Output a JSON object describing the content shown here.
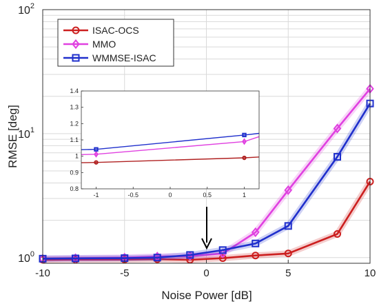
{
  "chart_data": [
    {
      "type": "line",
      "title": "",
      "xlabel": "Noise Power  [dB]",
      "ylabel": "RMSE [deg]",
      "xlim": [
        -10,
        10
      ],
      "ylim": [
        0.9,
        100
      ],
      "yscale": "log",
      "grid": true,
      "xticks": [
        -10,
        -5,
        0,
        5,
        10
      ],
      "yticks": [
        1,
        10,
        100
      ],
      "ytick_labels": [
        {
          "base": "10",
          "exp": "0"
        },
        {
          "base": "10",
          "exp": "1"
        },
        {
          "base": "10",
          "exp": "2"
        }
      ],
      "legend_position": "top-left",
      "series": [
        {
          "name": "ISAC-OCS",
          "color": "#cc1f1f",
          "marker": "circle",
          "x": [
            -10,
            -8,
            -5,
            -3,
            -1,
            1,
            3,
            5,
            8,
            10
          ],
          "y": [
            0.96,
            0.965,
            0.965,
            0.97,
            0.96,
            0.99,
            1.04,
            1.08,
            1.55,
            4.1
          ]
        },
        {
          "name": "MMO",
          "color": "#e040e0",
          "marker": "diamond",
          "x": [
            -10,
            -8,
            -5,
            -3,
            -1,
            1,
            3,
            5,
            8,
            10
          ],
          "y": [
            0.98,
            0.99,
            1.0,
            1.02,
            1.03,
            1.08,
            1.6,
            3.5,
            11,
            23
          ]
        },
        {
          "name": "WMMSE-ISAC",
          "color": "#1f2fcc",
          "marker": "square",
          "x": [
            -10,
            -8,
            -5,
            -3,
            -1,
            1,
            3,
            5,
            8,
            10
          ],
          "y": [
            0.98,
            0.985,
            0.99,
            1.0,
            1.05,
            1.15,
            1.3,
            1.8,
            6.5,
            17.5
          ]
        }
      ]
    },
    {
      "type": "line",
      "title": "inset",
      "xlim": [
        -1.2,
        1.2
      ],
      "ylim": [
        0.8,
        1.4
      ],
      "yscale": "linear",
      "xticks": [
        -1,
        -0.5,
        0,
        0.5,
        1
      ],
      "xtick_labels": [
        "-1",
        "-0.5",
        "0",
        "0.5",
        "1"
      ],
      "yticks": [
        0.8,
        0.9,
        1.0,
        1.1,
        1.2,
        1.3,
        1.4
      ],
      "ytick_labels": [
        "0.8",
        "0.9",
        "1",
        "1.1",
        "1.2",
        "1.3",
        "1.4"
      ],
      "series": [
        {
          "name": "ISAC-OCS",
          "color": "#b02020",
          "marker": "circle",
          "x": [
            -1.2,
            -1,
            1,
            1.2
          ],
          "y": [
            0.96,
            0.962,
            0.99,
            0.995
          ]
        },
        {
          "name": "MMO",
          "color": "#e040e0",
          "marker": "diamond",
          "x": [
            -1.2,
            -1,
            1,
            1.2
          ],
          "y": [
            1.01,
            1.012,
            1.09,
            1.12
          ]
        },
        {
          "name": "WMMSE-ISAC",
          "color": "#1f2fcc",
          "marker": "square",
          "x": [
            -1.2,
            -1,
            1,
            1.2
          ],
          "y": [
            1.04,
            1.042,
            1.13,
            1.14
          ]
        }
      ]
    }
  ]
}
